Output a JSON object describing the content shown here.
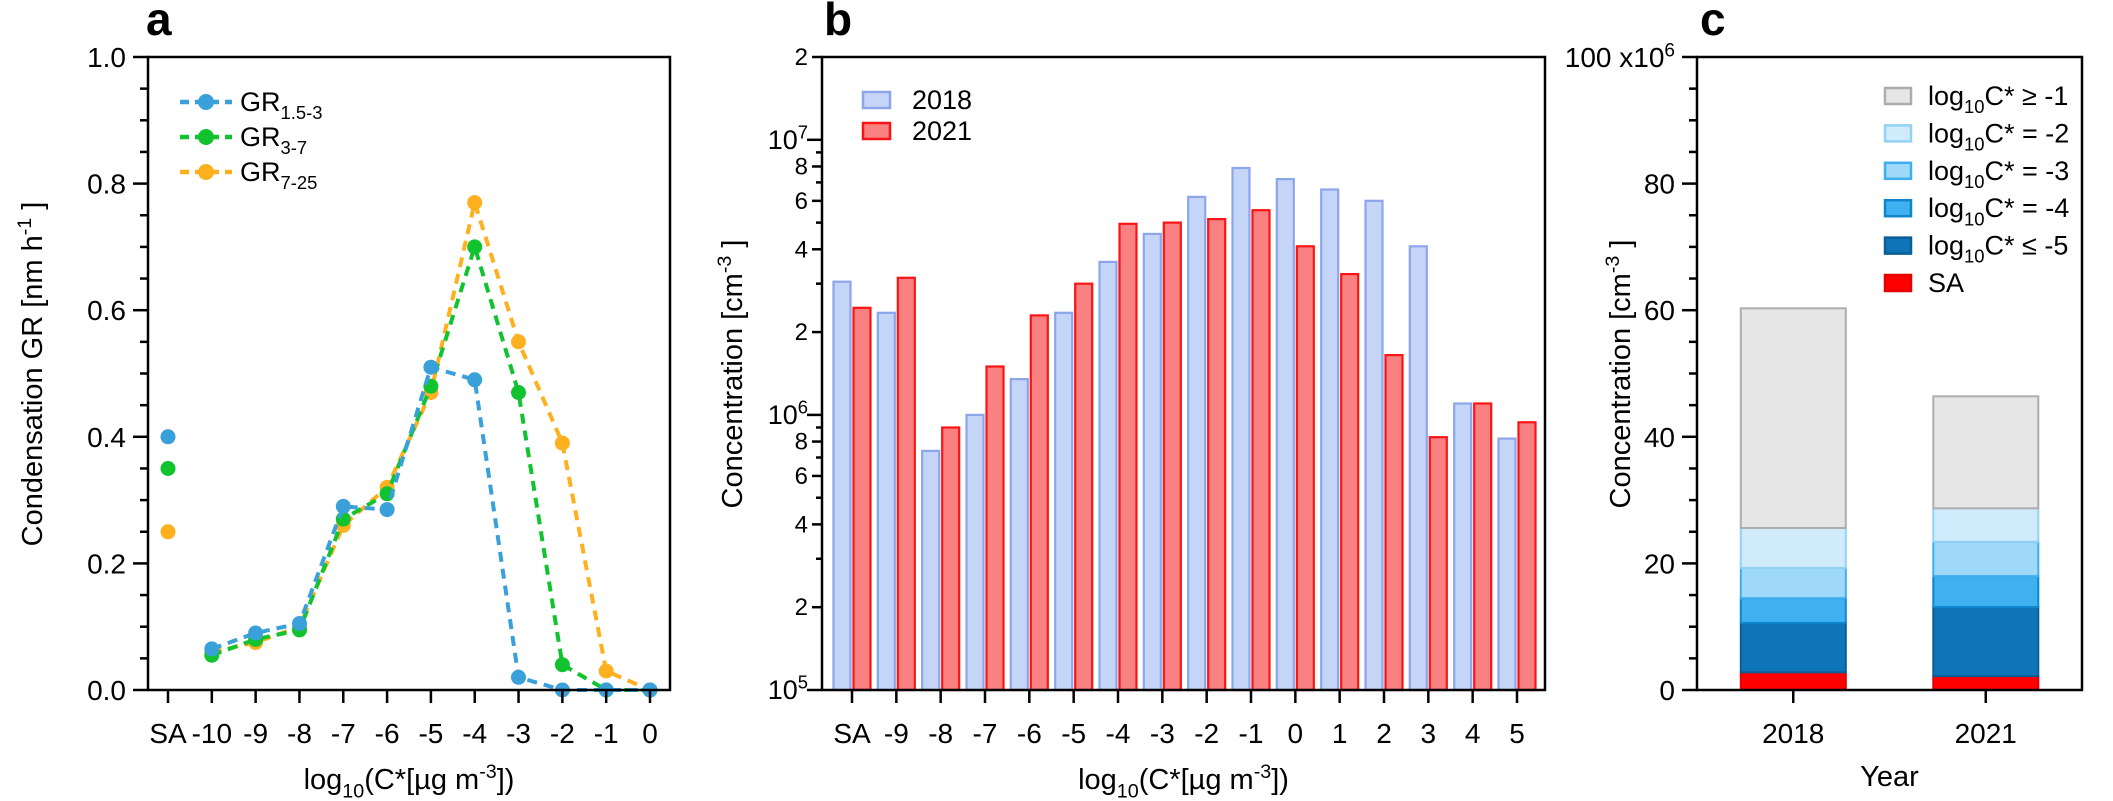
{
  "figure": {
    "panel_letters": {
      "a": "a",
      "b": "b",
      "c": "c"
    }
  },
  "chart_data": [
    {
      "panel": "a",
      "type": "line",
      "xlabel": "log~10~(C*[µg m^-3^])",
      "ylabel": "Condensation GR [nm h^-1^ ]",
      "categories": [
        "SA",
        "-10",
        "-9",
        "-8",
        "-7",
        "-6",
        "-5",
        "-4",
        "-3",
        "-2",
        "-1",
        "0"
      ],
      "ylim": [
        0,
        1.0
      ],
      "ytick_step": 0.2,
      "yminor_step": 0.05,
      "sa_isolated": true,
      "legend_position": "top-left",
      "line_style": "dashed",
      "series": [
        {
          "name": "GR~1.5-3~",
          "color": "#3AA0DA",
          "values": [
            0.4,
            0.065,
            0.09,
            0.105,
            0.29,
            0.285,
            0.51,
            0.49,
            0.02,
            0.0,
            0.0,
            0.0
          ]
        },
        {
          "name": "GR~3-7~",
          "color": "#10C32F",
          "values": [
            0.35,
            0.055,
            0.08,
            0.095,
            0.27,
            0.31,
            0.48,
            0.7,
            0.47,
            0.04,
            0.0,
            0.0
          ]
        },
        {
          "name": "GR~7-25~",
          "color": "#FFB01E",
          "values": [
            0.25,
            0.06,
            0.075,
            0.1,
            0.26,
            0.32,
            0.47,
            0.77,
            0.55,
            0.39,
            0.03,
            0.0
          ]
        }
      ]
    },
    {
      "panel": "b",
      "type": "bar",
      "yscale": "log",
      "xlabel": "log~10~(C*[µg m^-3^])",
      "ylabel": "Concentration [cm^-3^ ]",
      "categories": [
        "SA",
        "-9",
        "-8",
        "-7",
        "-6",
        "-5",
        "-4",
        "-3",
        "-2",
        "-1",
        "0",
        "1",
        "2",
        "3",
        "4",
        "5"
      ],
      "ylim": [
        100000,
        20000000
      ],
      "ymajor_decades": [
        5,
        6,
        7
      ],
      "top_minor_label": "2",
      "legend_position": "top-left",
      "series": [
        {
          "name": "2018",
          "fill": "#C5D5F7",
          "edge": "#8CA6EB",
          "values": [
            3050000,
            2350000,
            740000,
            1000000,
            1350000,
            2350000,
            3600000,
            4550000,
            6200000,
            7900000,
            7200000,
            6600000,
            6000000,
            4100000,
            1100000,
            820000
          ]
        },
        {
          "name": "2021",
          "fill": "#FA8181",
          "edge": "#FB1414",
          "values": [
            2450000,
            3150000,
            900000,
            1500000,
            2300000,
            3000000,
            4950000,
            5000000,
            5150000,
            5550000,
            4100000,
            3250000,
            1650000,
            830000,
            1100000,
            940000
          ]
        }
      ]
    },
    {
      "panel": "c",
      "type": "stacked-bar",
      "xlabel": "Year",
      "ylabel": "Concentration [cm^-3^ ]",
      "categories": [
        "2018",
        "2021"
      ],
      "ylim": [
        0,
        100
      ],
      "ytick_step": 20,
      "yminor_step": 5,
      "y_top_tick_label": "100 x10^6^",
      "legend_position": "top-right",
      "totals": [
        60.3,
        46.4
      ],
      "segments_bottom_to_top": [
        {
          "label": "SA",
          "fill": "#FF0000",
          "edge": "#E60000",
          "values": [
            2.8,
            2.2
          ]
        },
        {
          "label": "log~10~C* ≤ -5",
          "fill": "#0F74B8",
          "edge": "#0A5E97",
          "values": [
            7.8,
            10.9
          ]
        },
        {
          "label": "log~10~C* = -4",
          "fill": "#40B1F0",
          "edge": "#0E86CE",
          "values": [
            3.9,
            4.9
          ]
        },
        {
          "label": "log~10~C* = -3",
          "fill": "#9FD9F9",
          "edge": "#3FAEEF",
          "values": [
            4.8,
            5.4
          ]
        },
        {
          "label": "log~10~C* = -2",
          "fill": "#D0EBFC",
          "edge": "#93D2F5",
          "values": [
            6.3,
            5.3
          ]
        },
        {
          "label": "log~10~C* ≥ -1",
          "fill": "#E6E6E6",
          "edge": "#ADADAD",
          "values": [
            34.7,
            17.7
          ]
        }
      ]
    }
  ]
}
